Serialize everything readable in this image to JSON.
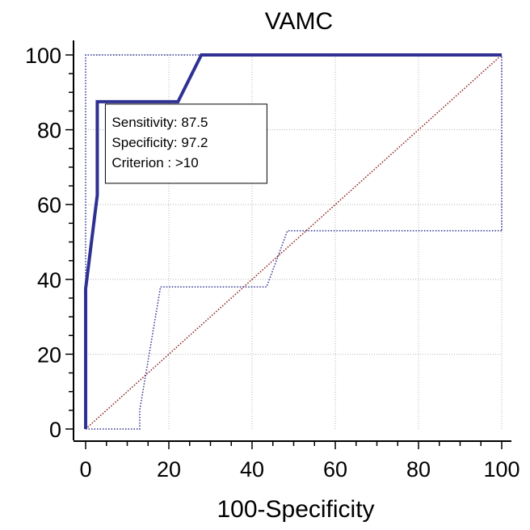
{
  "chart_data": {
    "type": "line",
    "title": "VAMC",
    "xlabel": "100-Specificity",
    "ylabel": "",
    "xlim": [
      0,
      100
    ],
    "ylim": [
      0,
      100
    ],
    "x_ticks": [
      0,
      20,
      40,
      60,
      80,
      100
    ],
    "y_ticks": [
      0,
      20,
      40,
      60,
      80,
      100
    ],
    "grid": true,
    "series": [
      {
        "role": "roc-curve",
        "color": "#2e3192",
        "style": "solid-thick",
        "points": [
          [
            0,
            0
          ],
          [
            0,
            37.5
          ],
          [
            2.8,
            62.5
          ],
          [
            2.8,
            87.5
          ],
          [
            22.2,
            87.5
          ],
          [
            27.8,
            100
          ],
          [
            100,
            100
          ]
        ]
      },
      {
        "role": "confidence-band-upper",
        "color": "#2e3192",
        "style": "dotted",
        "points": [
          [
            0,
            0
          ],
          [
            0,
            100
          ],
          [
            100,
            100
          ],
          [
            100,
            53
          ]
        ]
      },
      {
        "role": "confidence-band-lower",
        "color": "#2e3192",
        "style": "dotted",
        "points": [
          [
            0,
            0
          ],
          [
            13,
            0
          ],
          [
            13,
            5
          ],
          [
            18,
            38
          ],
          [
            43.5,
            38
          ],
          [
            48.5,
            53
          ],
          [
            100,
            53
          ]
        ]
      },
      {
        "role": "reference-diagonal",
        "color": "#8b1a1a",
        "style": "dotted",
        "points": [
          [
            0,
            0
          ],
          [
            100,
            100
          ]
        ]
      }
    ],
    "annotation": {
      "anchor": [
        2.8,
        87.5
      ],
      "lines": [
        "Sensitivity:  87.5",
        "Specificity:  97.2",
        "Criterion  : >10"
      ]
    }
  }
}
